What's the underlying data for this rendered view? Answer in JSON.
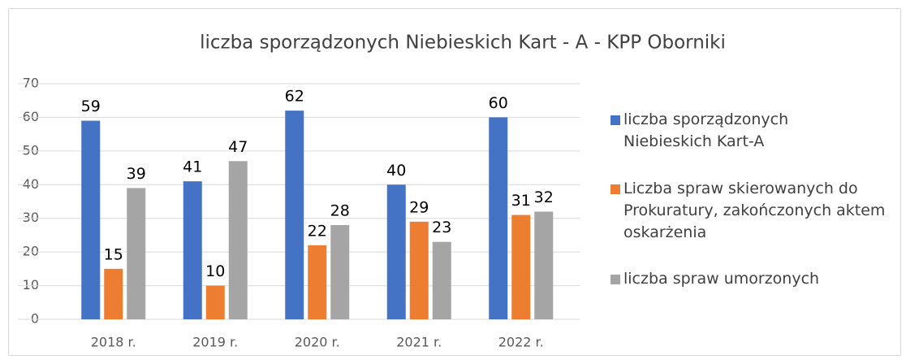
{
  "chart_data": {
    "type": "bar",
    "title": "liczba sporządzonych Niebieskich Kart - A - KPP Oborniki",
    "categories": [
      "2018 r.",
      "2019 r.",
      "2020 r.",
      "2021 r.",
      "2022 r."
    ],
    "series": [
      {
        "name": "liczba sporządzonych Niebieskich Kart-A",
        "color": "#4472c4",
        "values": [
          59,
          41,
          62,
          40,
          60
        ]
      },
      {
        "name": "Liczba spraw skierowanych do Prokuratury, zakończonych aktem oskarżenia",
        "color": "#ed7d31",
        "values": [
          15,
          10,
          22,
          29,
          31
        ]
      },
      {
        "name": "liczba spraw umorzonych",
        "color": "#a5a5a5",
        "values": [
          39,
          47,
          28,
          23,
          32
        ]
      }
    ],
    "ylim": [
      0,
      70
    ],
    "yticks": [
      0,
      10,
      20,
      30,
      40,
      50,
      60,
      70
    ],
    "grid": true,
    "legend": "right"
  }
}
